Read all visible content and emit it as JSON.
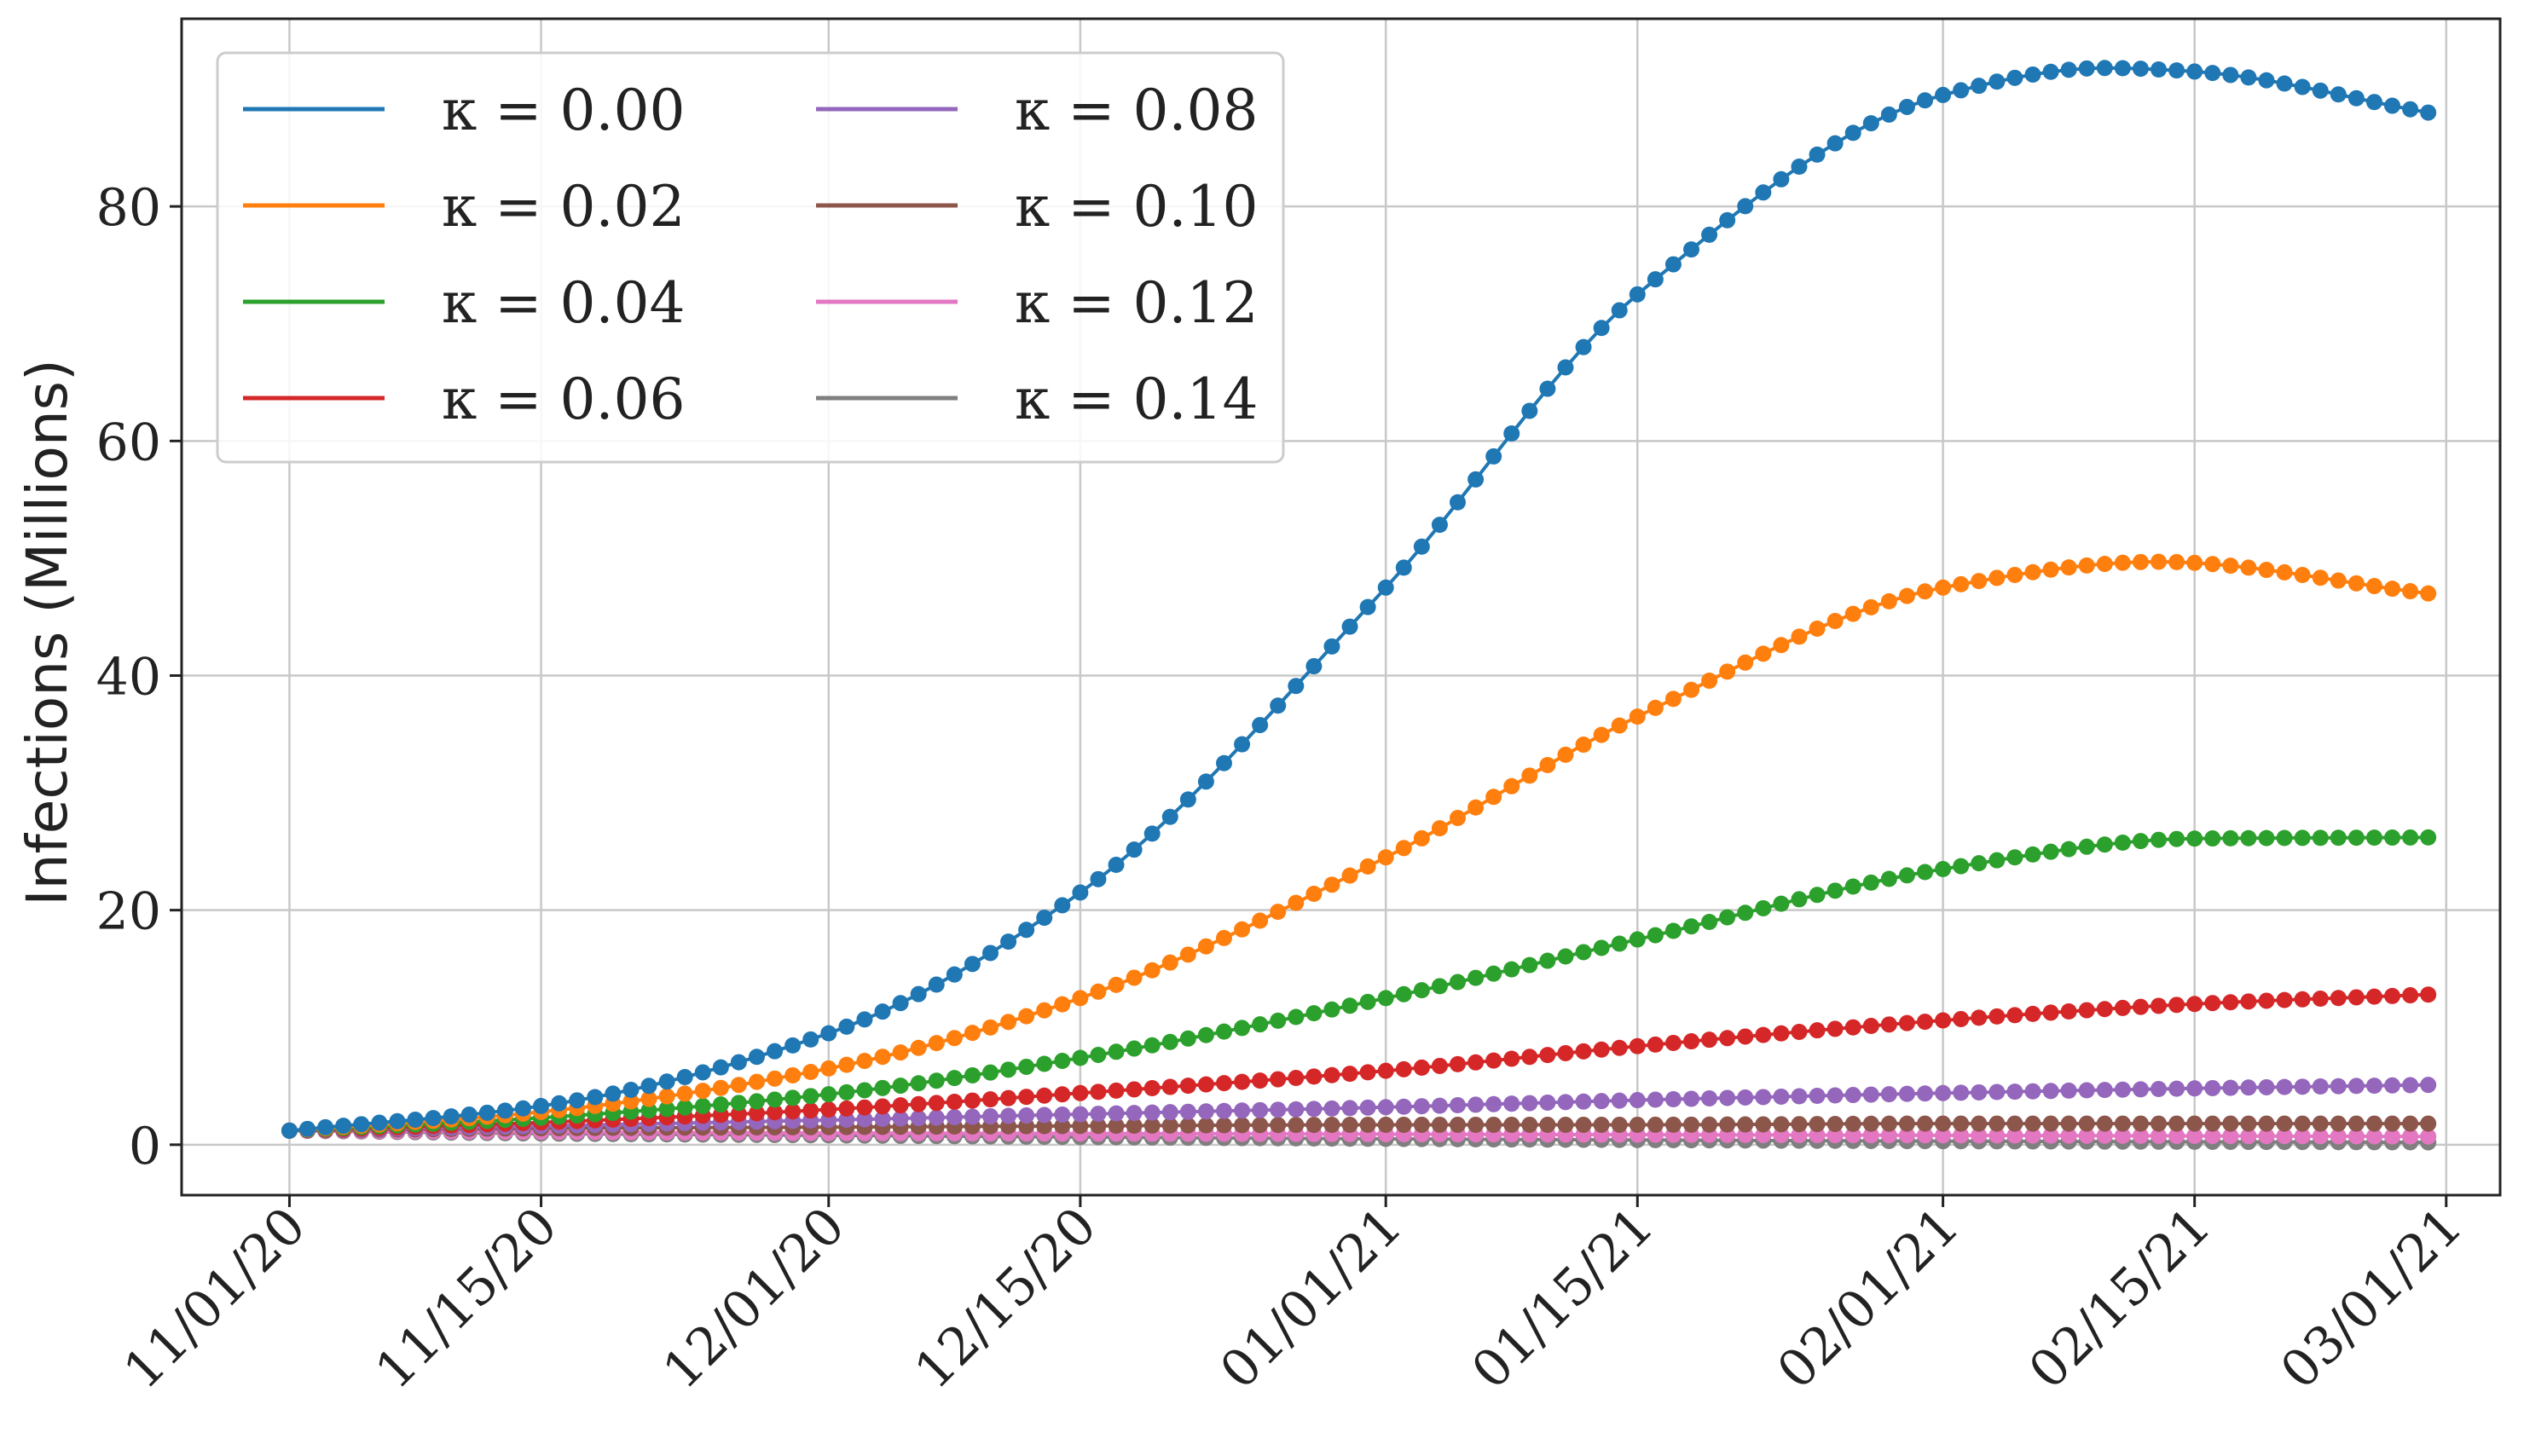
{
  "chart_data": {
    "type": "line",
    "xlabel": "",
    "ylabel": "Infections (Millions)",
    "xlim": [
      "10/26/20",
      "03/04/21"
    ],
    "ylim": [
      -4.3,
      96
    ],
    "grid": true,
    "legend": {
      "placement": "top-left",
      "columns": 2
    },
    "x_ticks": [
      "11/01/20",
      "11/15/20",
      "12/01/20",
      "12/15/20",
      "01/01/21",
      "01/15/21",
      "02/01/21",
      "02/15/21",
      "03/01/21"
    ],
    "y_ticks": [
      0,
      20,
      40,
      60,
      80
    ],
    "x_start": "11/01/20",
    "x_end": "02/28/21",
    "series": [
      {
        "name": "κ = 0.00",
        "color": "#1f77b4",
        "x": [
          "11/01/20",
          "11/15/20",
          "12/01/20",
          "12/15/20",
          "01/01/21",
          "01/15/21",
          "02/01/21",
          "02/10/21",
          "02/15/21",
          "02/28/21"
        ],
        "y": [
          1.2,
          3.3,
          9.5,
          21.5,
          47.5,
          72.5,
          89.5,
          91.8,
          91.5,
          88.0
        ]
      },
      {
        "name": "κ = 0.02",
        "color": "#ff7f0e",
        "x": [
          "11/01/20",
          "11/15/20",
          "12/01/20",
          "12/15/20",
          "01/01/21",
          "01/15/21",
          "02/01/21",
          "02/13/21",
          "02/28/21"
        ],
        "y": [
          1.2,
          2.8,
          6.5,
          12.5,
          24.5,
          36.5,
          47.5,
          49.7,
          47.0
        ]
      },
      {
        "name": "κ = 0.04",
        "color": "#2ca02c",
        "x": [
          "11/01/20",
          "11/15/20",
          "12/01/20",
          "12/15/20",
          "01/01/21",
          "01/15/21",
          "02/01/21",
          "02/15/21",
          "02/28/21"
        ],
        "y": [
          1.2,
          2.3,
          4.3,
          7.4,
          12.5,
          17.5,
          23.5,
          26.1,
          26.2
        ]
      },
      {
        "name": "κ = 0.06",
        "color": "#d62728",
        "x": [
          "11/01/20",
          "11/15/20",
          "12/01/20",
          "12/15/20",
          "01/01/21",
          "01/15/21",
          "02/01/21",
          "02/15/21",
          "02/28/21"
        ],
        "y": [
          1.2,
          1.9,
          3.0,
          4.4,
          6.3,
          8.4,
          10.6,
          12.0,
          12.8
        ]
      },
      {
        "name": "κ = 0.08",
        "color": "#9467bd",
        "x": [
          "11/01/20",
          "11/15/20",
          "12/01/20",
          "12/15/20",
          "01/01/21",
          "01/15/21",
          "02/01/21",
          "02/15/21",
          "02/28/21"
        ],
        "y": [
          1.2,
          1.6,
          2.1,
          2.6,
          3.2,
          3.8,
          4.4,
          4.8,
          5.1
        ]
      },
      {
        "name": "κ = 0.10",
        "color": "#8c564b",
        "x": [
          "11/01/20",
          "11/15/20",
          "12/01/20",
          "12/15/20",
          "01/01/21",
          "01/15/21",
          "02/01/21",
          "02/15/21",
          "02/28/21"
        ],
        "y": [
          1.2,
          1.4,
          1.5,
          1.6,
          1.7,
          1.7,
          1.8,
          1.8,
          1.8
        ]
      },
      {
        "name": "κ = 0.12",
        "color": "#e377c2",
        "x": [
          "11/01/20",
          "11/15/20",
          "12/01/20",
          "12/15/20",
          "01/01/21",
          "01/15/21",
          "02/01/21",
          "02/15/21",
          "02/28/21"
        ],
        "y": [
          1.2,
          1.1,
          1.0,
          0.95,
          0.9,
          0.85,
          0.8,
          0.75,
          0.7
        ]
      },
      {
        "name": "κ = 0.14",
        "color": "#7f7f7f",
        "x": [
          "11/01/20",
          "11/15/20",
          "12/01/20",
          "12/15/20",
          "01/01/21",
          "01/15/21",
          "02/01/21",
          "02/15/21",
          "02/28/21"
        ],
        "y": [
          1.2,
          0.95,
          0.8,
          0.65,
          0.5,
          0.4,
          0.3,
          0.25,
          0.2
        ]
      }
    ]
  }
}
